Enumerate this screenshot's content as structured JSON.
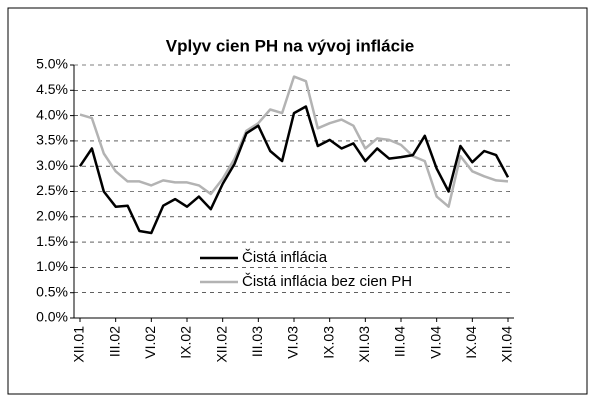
{
  "chart_data": {
    "type": "line",
    "title": "Vplyv cien PH na vývoj inflácie",
    "categories": [
      "XII.01",
      null,
      null,
      "III.02",
      null,
      null,
      "VI.02",
      null,
      null,
      "IX.02",
      null,
      null,
      "XII.02",
      null,
      null,
      "III.03",
      null,
      null,
      "VI.03",
      null,
      null,
      "IX.03",
      null,
      null,
      "XII.03",
      null,
      null,
      "III.04",
      null,
      null,
      "VI.04",
      null,
      null,
      "IX.04",
      null,
      null,
      "XII.04"
    ],
    "series": [
      {
        "name": "Čistá inflácia",
        "color": "#000000",
        "values": [
          3.0,
          3.35,
          2.5,
          2.2,
          2.22,
          1.72,
          1.68,
          2.22,
          2.35,
          2.2,
          2.4,
          2.15,
          2.65,
          3.05,
          3.65,
          3.8,
          3.3,
          3.1,
          4.05,
          4.18,
          3.4,
          3.52,
          3.35,
          3.45,
          3.1,
          3.35,
          3.15,
          3.18,
          3.22,
          3.6,
          2.95,
          2.5,
          3.4,
          3.08,
          3.3,
          3.22,
          2.78
        ]
      },
      {
        "name": "Čistá inflácia bez cien PH",
        "color": "#b3b3b3",
        "values": [
          4.02,
          3.95,
          3.25,
          2.9,
          2.7,
          2.7,
          2.62,
          2.72,
          2.68,
          2.68,
          2.62,
          2.45,
          2.75,
          3.15,
          3.7,
          3.85,
          4.12,
          4.05,
          4.77,
          4.68,
          3.75,
          3.85,
          3.92,
          3.8,
          3.35,
          3.55,
          3.52,
          3.42,
          3.2,
          3.1,
          2.4,
          2.2,
          3.2,
          2.9,
          2.8,
          2.72,
          2.7
        ]
      }
    ],
    "ylim": [
      0,
      5
    ],
    "yticks": [
      {
        "value": 0,
        "label": "0.0%"
      },
      {
        "value": 0.5,
        "label": "0.5%"
      },
      {
        "value": 1,
        "label": "1.0%"
      },
      {
        "value": 1.5,
        "label": "1.5%"
      },
      {
        "value": 2,
        "label": "2.0%"
      },
      {
        "value": 2.5,
        "label": "2.5%"
      },
      {
        "value": 3,
        "label": "3.0%"
      },
      {
        "value": 3.5,
        "label": "3.5%"
      },
      {
        "value": 4,
        "label": "4.0%"
      },
      {
        "value": 4.5,
        "label": "4.5%"
      },
      {
        "value": 5,
        "label": "5.0%"
      }
    ],
    "grid": true
  }
}
